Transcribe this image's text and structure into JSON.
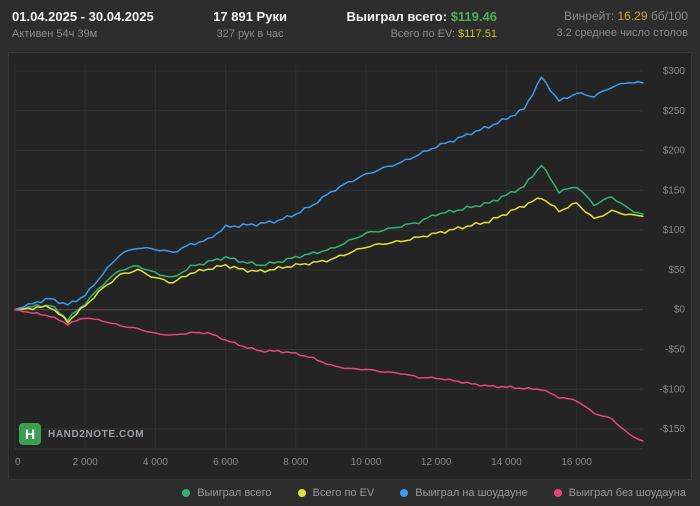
{
  "header": {
    "date_range": "01.04.2025 - 30.04.2025",
    "active_time": "Активен 54ч 39м",
    "hands": "17 891 Руки",
    "hands_per_hour": "327 рук в час",
    "won_total_label": "Выиграл всего:",
    "won_total_value": "$119.46",
    "ev_total_label": "Всего по EV:",
    "ev_total_value": "$117.51",
    "winrate_label": "Винрейт:",
    "winrate_value": "16.29",
    "winrate_unit": "бб/100",
    "avg_tables": "3.2 среднее число столов"
  },
  "logo": {
    "letter": "H",
    "text": "HAND2NOTE.COM"
  },
  "colors": {
    "green": "#4cb050",
    "yellow": "#cfc32f",
    "orange": "#dd9b3c",
    "blue": "#3a9df0",
    "pink": "#e8457d"
  },
  "chart_data": {
    "type": "line",
    "title": "",
    "xlabel": "",
    "ylabel": "",
    "grid": true,
    "legend_position": "bottom",
    "xlim": [
      0,
      17891
    ],
    "ylim": [
      -175,
      310
    ],
    "x_ticks": [
      0,
      2000,
      4000,
      6000,
      8000,
      10000,
      12000,
      14000,
      16000
    ],
    "x_tick_labels": [
      "0",
      "2 000",
      "4 000",
      "6 000",
      "8 000",
      "10 000",
      "12 000",
      "14 000",
      "16 000"
    ],
    "y_ticks": [
      300,
      250,
      200,
      150,
      100,
      50,
      0,
      -50,
      -100,
      -150
    ],
    "y_tick_labels": [
      "$300",
      "$250",
      "$200",
      "$150",
      "$100",
      "$50",
      "$0",
      "-$50",
      "-$100",
      "-$150"
    ],
    "x": [
      0,
      500,
      1000,
      1500,
      2000,
      2500,
      3000,
      3500,
      4000,
      4500,
      5000,
      5500,
      6000,
      6500,
      7000,
      7500,
      8000,
      8500,
      9000,
      9500,
      10000,
      10500,
      11000,
      11500,
      12000,
      12500,
      13000,
      13500,
      14000,
      14500,
      15000,
      15500,
      16000,
      16500,
      17000,
      17500,
      17891
    ],
    "series": [
      {
        "name": "Выиграл всего",
        "color": "#2fb576",
        "values": [
          0,
          4,
          6,
          -12,
          8,
          32,
          50,
          55,
          46,
          40,
          54,
          60,
          66,
          60,
          56,
          60,
          66,
          71,
          76,
          86,
          96,
          100,
          105,
          110,
          120,
          124,
          129,
          134,
          144,
          155,
          182,
          148,
          155,
          132,
          142,
          126,
          120
        ]
      },
      {
        "name": "Всего по EV",
        "color": "#e3e13c",
        "values": [
          0,
          2,
          4,
          -15,
          5,
          27,
          44,
          50,
          40,
          34,
          46,
          51,
          56,
          50,
          48,
          52,
          56,
          59,
          63,
          71,
          79,
          83,
          86,
          91,
          96,
          101,
          106,
          111,
          121,
          131,
          141,
          124,
          134,
          114,
          124,
          119,
          117.5
        ]
      },
      {
        "name": "Выиграл на шоудауне",
        "color": "#3a9df0",
        "values": [
          0,
          8,
          14,
          6,
          18,
          45,
          70,
          78,
          76,
          72,
          82,
          88,
          104,
          106,
          108,
          112,
          120,
          132,
          148,
          160,
          170,
          178,
          185,
          195,
          205,
          213,
          222,
          230,
          240,
          252,
          292,
          262,
          272,
          268,
          280,
          286,
          285
        ]
      },
      {
        "name": "Выиграл без шоудауна",
        "color": "#e8457d",
        "values": [
          0,
          -4,
          -8,
          -18,
          -10,
          -14,
          -20,
          -24,
          -30,
          -32,
          -29,
          -29,
          -38,
          -46,
          -52,
          -52,
          -55,
          -61,
          -70,
          -74,
          -75,
          -78,
          -80,
          -85,
          -86,
          -89,
          -93,
          -96,
          -97,
          -99,
          -100,
          -110,
          -114,
          -130,
          -137,
          -157,
          -165
        ]
      }
    ]
  }
}
